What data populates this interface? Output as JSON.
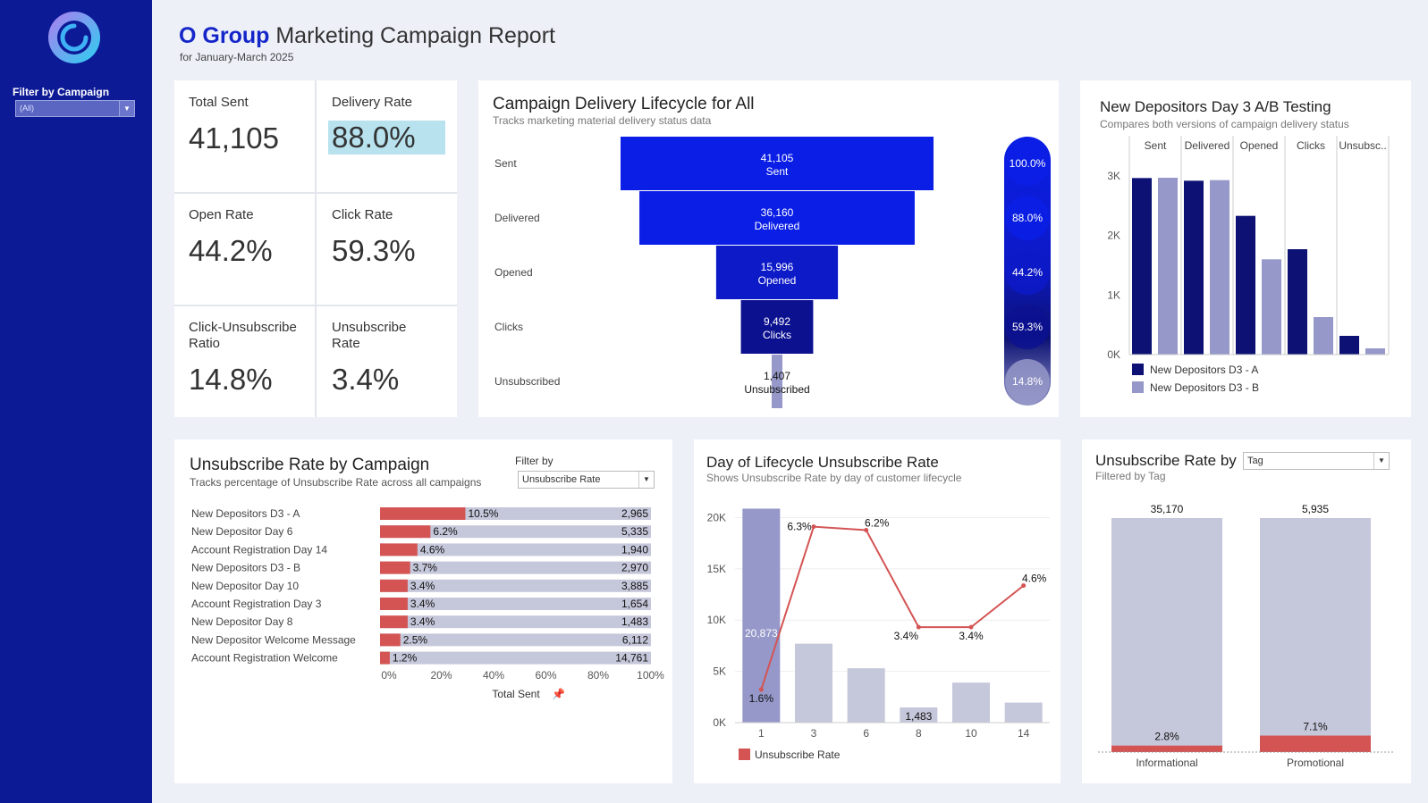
{
  "header": {
    "brand": "O Group",
    "title_rest": " Marketing Campaign Report",
    "subtitle": "for January-March 2025"
  },
  "sidebar": {
    "filter_label": "Filter by Campaign",
    "filter_value": "(All)"
  },
  "kpis": [
    {
      "label": "Total Sent",
      "value": "41,105"
    },
    {
      "label": "Delivery Rate",
      "value": "88.0%"
    },
    {
      "label": "Open Rate",
      "value": "44.2%"
    },
    {
      "label": "Click Rate",
      "value": "59.3%"
    },
    {
      "label": "Click-Unsubscribe Ratio",
      "value": "14.8%"
    },
    {
      "label": "Unsubscribe Rate",
      "value": "3.4%"
    }
  ],
  "colors": {
    "navy": "#0d1a96",
    "blue": "#0a1ee6",
    "dark": "#0c1173",
    "lavender": "#9598c8",
    "red": "#d45454",
    "gray": "#c5c7da"
  },
  "funnel": {
    "title": "Campaign Delivery Lifecycle for All",
    "subtitle": "Tracks marketing material delivery status data"
  },
  "ab": {
    "title": "New Depositors Day 3 A/B Testing",
    "subtitle": "Compares both versions of campaign delivery status"
  },
  "unsub_campaign": {
    "title": "Unsubscribe Rate by Campaign",
    "subtitle": "Tracks percentage of Unsubscribe Rate across all campaigns",
    "filter_label": "Filter by",
    "filter_value": "Unsubscribe Rate",
    "axis_label": "Total Sent"
  },
  "lifecycle": {
    "title": "Day of Lifecycle Unsubscribe Rate",
    "subtitle": "Shows Unsubscribe Rate by day of customer lifecycle"
  },
  "tag": {
    "title": "Unsubscribe Rate by",
    "subtitle": "Filtered by Tag",
    "filter_value": "Tag"
  },
  "chart_data": [
    {
      "type": "bar",
      "title": "Campaign Delivery Lifecycle for All",
      "categories": [
        "Sent",
        "Delivered",
        "Opened",
        "Clicks",
        "Unsubscribed"
      ],
      "values": [
        41105,
        36160,
        15996,
        9492,
        1407
      ],
      "value_labels": [
        "41,105",
        "36,160",
        "15,996",
        "9,492",
        "1,407"
      ],
      "rates": [
        100.0,
        88.0,
        44.2,
        59.3,
        14.8
      ],
      "rate_labels": [
        "100.0%",
        "88.0%",
        "44.2%",
        "59.3%",
        "14.8%"
      ]
    },
    {
      "type": "bar",
      "title": "New Depositors Day 3 A/B Testing",
      "categories": [
        "Sent",
        "Delivered",
        "Opened",
        "Clicks",
        "Unsubsc.."
      ],
      "series": [
        {
          "name": "New Depositors D3 - A",
          "values": [
            2965,
            2920,
            2330,
            1770,
            315
          ]
        },
        {
          "name": "New Depositors D3 - B",
          "values": [
            2970,
            2930,
            1600,
            630,
            105
          ]
        }
      ],
      "ylim": [
        0,
        3300
      ],
      "y_ticks": [
        0,
        1000,
        2000,
        3000
      ],
      "y_tick_labels": [
        "0K",
        "1K",
        "2K",
        "3K"
      ],
      "legend": "bottom"
    },
    {
      "type": "bar",
      "title": "Unsubscribe Rate by Campaign",
      "categories": [
        "New Depositors D3 - A",
        "New Depositor Day 6",
        "Account Registration Day 14",
        "New Depositors D3 - B",
        "New Depositor Day 10",
        "Account Registration Day 3",
        "New Depositor Day 8",
        "New Depositor Welcome Message",
        "Account Registration Welcome"
      ],
      "values": [
        10.5,
        6.2,
        4.6,
        3.7,
        3.4,
        3.4,
        3.4,
        2.5,
        1.2
      ],
      "value_labels": [
        "10.5%",
        "6.2%",
        "4.6%",
        "3.7%",
        "3.4%",
        "3.4%",
        "3.4%",
        "2.5%",
        "1.2%"
      ],
      "totals": [
        "2,965",
        "5,335",
        "1,940",
        "2,970",
        "3,885",
        "1,654",
        "1,483",
        "6,112",
        "14,761"
      ],
      "x_ticks": [
        "0%",
        "20%",
        "40%",
        "60%",
        "80%",
        "100%"
      ],
      "xlabel": "Total Sent"
    },
    {
      "type": "bar",
      "title": "Day of Lifecycle Unsubscribe Rate",
      "categories": [
        "1",
        "3",
        "6",
        "8",
        "10",
        "14"
      ],
      "bar_values": [
        20873,
        7700,
        5300,
        1483,
        3900,
        1950
      ],
      "bar_labels": [
        "20,873",
        "",
        "",
        "1,483",
        "",
        ""
      ],
      "line_values": [
        1.6,
        6.3,
        6.2,
        3.4,
        3.4,
        4.6
      ],
      "line_labels": [
        "1.6%",
        "6.3%",
        "6.2%",
        "3.4%",
        "3.4%",
        "4.6%"
      ],
      "ylim": [
        0,
        21000
      ],
      "y_ticks": [
        "0K",
        "5K",
        "10K",
        "15K",
        "20K"
      ],
      "legend": "Unsubscribe Rate"
    },
    {
      "type": "bar",
      "title": "Unsubscribe Rate by Tag",
      "categories": [
        "Informational",
        "Promotional"
      ],
      "totals": [
        35170,
        5935
      ],
      "total_labels": [
        "35,170",
        "5,935"
      ],
      "rates": [
        2.8,
        7.1
      ],
      "rate_labels": [
        "2.8%",
        "7.1%"
      ]
    }
  ]
}
